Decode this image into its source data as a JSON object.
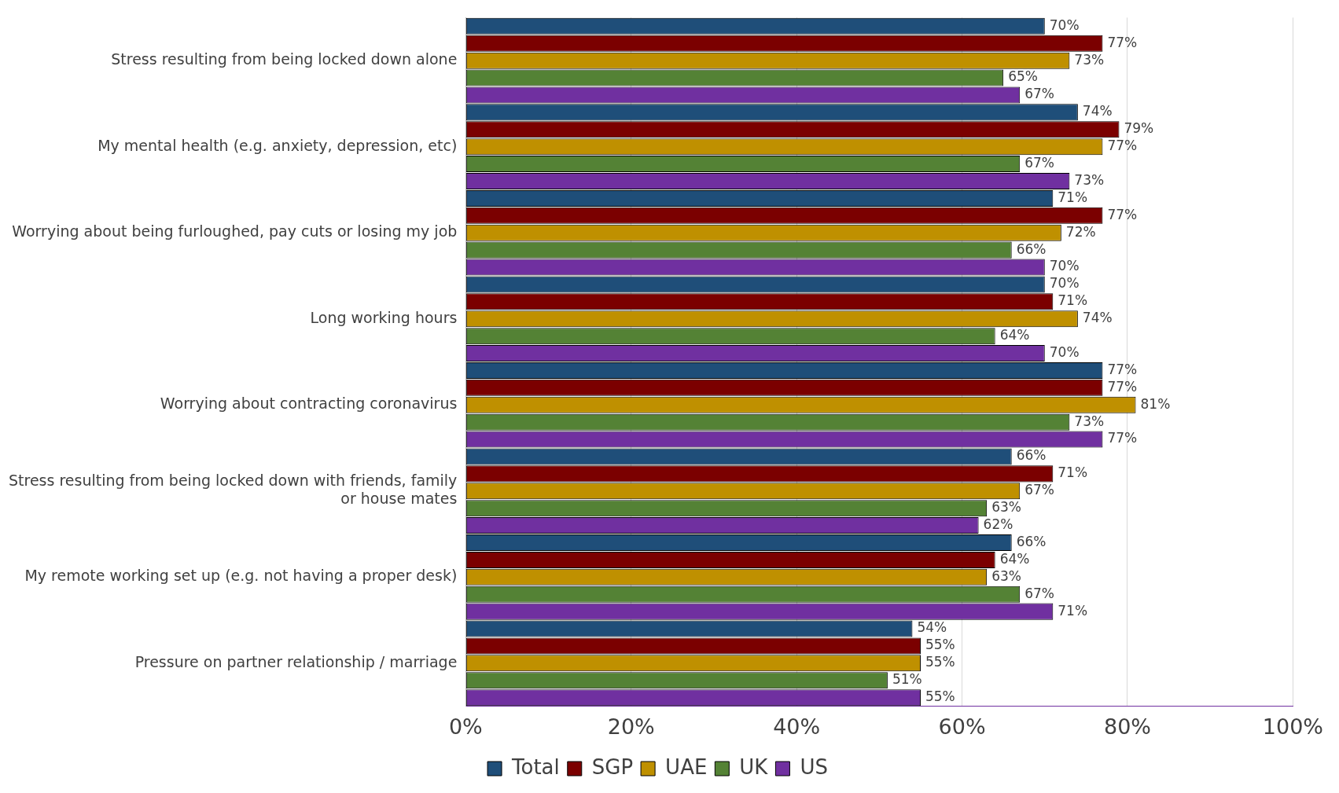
{
  "chart_data": {
    "type": "bar",
    "orientation": "horizontal",
    "categories": [
      "Stress resulting from being locked down alone",
      "My mental health (e.g. anxiety, depression, etc)",
      "Worrying about being furloughed, pay cuts or losing my job",
      "Long working hours",
      "Worrying about contracting coronavirus",
      "Stress resulting from being locked down with friends, family or house mates",
      "My remote working set up (e.g. not having a proper desk)",
      "Pressure on partner relationship / marriage"
    ],
    "series": [
      {
        "name": "Total",
        "color": "#1f4e79",
        "values": [
          70,
          74,
          71,
          70,
          77,
          66,
          66,
          54
        ],
        "value_labels": [
          "70%",
          "74%",
          "71%",
          "70%",
          "77%",
          "66%",
          "66%",
          "54%"
        ]
      },
      {
        "name": "SGP",
        "color": "#7b0000",
        "values": [
          77,
          79,
          77,
          71,
          77,
          71,
          64,
          55
        ],
        "value_labels": [
          "77%",
          "79%",
          "77%",
          "71%",
          "77%",
          "71%",
          "64%",
          "55%"
        ]
      },
      {
        "name": "UAE",
        "color": "#bf9000",
        "values": [
          73,
          77,
          72,
          74,
          81,
          67,
          63,
          55
        ],
        "value_labels": [
          "73%",
          "77%",
          "72%",
          "74%",
          "81%",
          "67%",
          "63%",
          "55%"
        ]
      },
      {
        "name": "UK",
        "color": "#548235",
        "values": [
          65,
          67,
          66,
          64,
          73,
          63,
          67,
          51
        ],
        "value_labels": [
          "65%",
          "67%",
          "66%",
          "64%",
          "73%",
          "63%",
          "67%",
          "51%"
        ]
      },
      {
        "name": "US",
        "color": "#7030a0",
        "values": [
          67,
          73,
          70,
          70,
          77,
          62,
          71,
          55
        ],
        "value_labels": [
          "67%",
          "73%",
          "70%",
          "70%",
          "77%",
          "62%",
          "71%",
          "55%"
        ]
      }
    ],
    "xlim": [
      0,
      100
    ],
    "xticks": [
      {
        "value": 0,
        "label": "0%"
      },
      {
        "value": 20,
        "label": "20%"
      },
      {
        "value": 40,
        "label": "40%"
      },
      {
        "value": 60,
        "label": "60%"
      },
      {
        "value": 80,
        "label": "80%"
      },
      {
        "value": 100,
        "label": "100%"
      }
    ],
    "grid": "x",
    "legend": "bottom"
  }
}
